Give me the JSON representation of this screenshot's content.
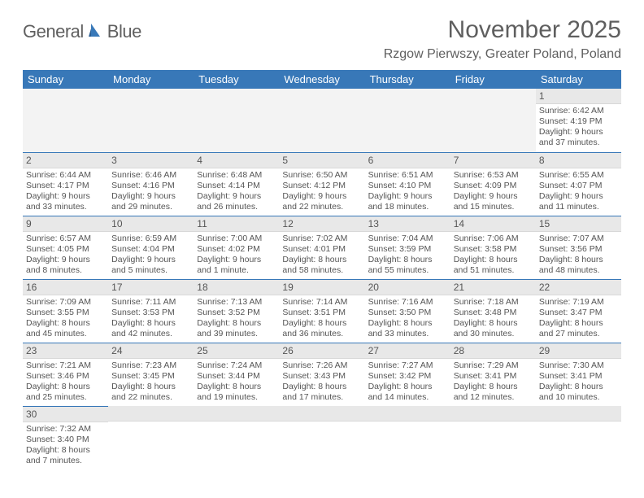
{
  "brand": {
    "name_part1": "General",
    "name_part2": "Blue"
  },
  "title": "November 2025",
  "location": "Rzgow Pierwszy, Greater Poland, Poland",
  "colors": {
    "header_bg": "#3878b8",
    "header_text": "#ffffff",
    "body_text": "#555555",
    "title_text": "#5f5f5f",
    "daynum_bg": "#e8e8e8",
    "row_divider": "#3878b8",
    "cell_border": "#e0e0e0",
    "empty_bg": "#f3f3f3",
    "background": "#ffffff"
  },
  "typography": {
    "title_fontsize": 30,
    "location_fontsize": 16,
    "dayhead_fontsize": 13,
    "daynum_fontsize": 12,
    "body_fontsize": 10.5,
    "logo_fontsize": 22
  },
  "day_headers": [
    "Sunday",
    "Monday",
    "Tuesday",
    "Wednesday",
    "Thursday",
    "Friday",
    "Saturday"
  ],
  "weeks": [
    [
      null,
      null,
      null,
      null,
      null,
      null,
      {
        "day": "1",
        "sunrise": "Sunrise: 6:42 AM",
        "sunset": "Sunset: 4:19 PM",
        "daylight1": "Daylight: 9 hours",
        "daylight2": "and 37 minutes."
      }
    ],
    [
      {
        "day": "2",
        "sunrise": "Sunrise: 6:44 AM",
        "sunset": "Sunset: 4:17 PM",
        "daylight1": "Daylight: 9 hours",
        "daylight2": "and 33 minutes."
      },
      {
        "day": "3",
        "sunrise": "Sunrise: 6:46 AM",
        "sunset": "Sunset: 4:16 PM",
        "daylight1": "Daylight: 9 hours",
        "daylight2": "and 29 minutes."
      },
      {
        "day": "4",
        "sunrise": "Sunrise: 6:48 AM",
        "sunset": "Sunset: 4:14 PM",
        "daylight1": "Daylight: 9 hours",
        "daylight2": "and 26 minutes."
      },
      {
        "day": "5",
        "sunrise": "Sunrise: 6:50 AM",
        "sunset": "Sunset: 4:12 PM",
        "daylight1": "Daylight: 9 hours",
        "daylight2": "and 22 minutes."
      },
      {
        "day": "6",
        "sunrise": "Sunrise: 6:51 AM",
        "sunset": "Sunset: 4:10 PM",
        "daylight1": "Daylight: 9 hours",
        "daylight2": "and 18 minutes."
      },
      {
        "day": "7",
        "sunrise": "Sunrise: 6:53 AM",
        "sunset": "Sunset: 4:09 PM",
        "daylight1": "Daylight: 9 hours",
        "daylight2": "and 15 minutes."
      },
      {
        "day": "8",
        "sunrise": "Sunrise: 6:55 AM",
        "sunset": "Sunset: 4:07 PM",
        "daylight1": "Daylight: 9 hours",
        "daylight2": "and 11 minutes."
      }
    ],
    [
      {
        "day": "9",
        "sunrise": "Sunrise: 6:57 AM",
        "sunset": "Sunset: 4:05 PM",
        "daylight1": "Daylight: 9 hours",
        "daylight2": "and 8 minutes."
      },
      {
        "day": "10",
        "sunrise": "Sunrise: 6:59 AM",
        "sunset": "Sunset: 4:04 PM",
        "daylight1": "Daylight: 9 hours",
        "daylight2": "and 5 minutes."
      },
      {
        "day": "11",
        "sunrise": "Sunrise: 7:00 AM",
        "sunset": "Sunset: 4:02 PM",
        "daylight1": "Daylight: 9 hours",
        "daylight2": "and 1 minute."
      },
      {
        "day": "12",
        "sunrise": "Sunrise: 7:02 AM",
        "sunset": "Sunset: 4:01 PM",
        "daylight1": "Daylight: 8 hours",
        "daylight2": "and 58 minutes."
      },
      {
        "day": "13",
        "sunrise": "Sunrise: 7:04 AM",
        "sunset": "Sunset: 3:59 PM",
        "daylight1": "Daylight: 8 hours",
        "daylight2": "and 55 minutes."
      },
      {
        "day": "14",
        "sunrise": "Sunrise: 7:06 AM",
        "sunset": "Sunset: 3:58 PM",
        "daylight1": "Daylight: 8 hours",
        "daylight2": "and 51 minutes."
      },
      {
        "day": "15",
        "sunrise": "Sunrise: 7:07 AM",
        "sunset": "Sunset: 3:56 PM",
        "daylight1": "Daylight: 8 hours",
        "daylight2": "and 48 minutes."
      }
    ],
    [
      {
        "day": "16",
        "sunrise": "Sunrise: 7:09 AM",
        "sunset": "Sunset: 3:55 PM",
        "daylight1": "Daylight: 8 hours",
        "daylight2": "and 45 minutes."
      },
      {
        "day": "17",
        "sunrise": "Sunrise: 7:11 AM",
        "sunset": "Sunset: 3:53 PM",
        "daylight1": "Daylight: 8 hours",
        "daylight2": "and 42 minutes."
      },
      {
        "day": "18",
        "sunrise": "Sunrise: 7:13 AM",
        "sunset": "Sunset: 3:52 PM",
        "daylight1": "Daylight: 8 hours",
        "daylight2": "and 39 minutes."
      },
      {
        "day": "19",
        "sunrise": "Sunrise: 7:14 AM",
        "sunset": "Sunset: 3:51 PM",
        "daylight1": "Daylight: 8 hours",
        "daylight2": "and 36 minutes."
      },
      {
        "day": "20",
        "sunrise": "Sunrise: 7:16 AM",
        "sunset": "Sunset: 3:50 PM",
        "daylight1": "Daylight: 8 hours",
        "daylight2": "and 33 minutes."
      },
      {
        "day": "21",
        "sunrise": "Sunrise: 7:18 AM",
        "sunset": "Sunset: 3:48 PM",
        "daylight1": "Daylight: 8 hours",
        "daylight2": "and 30 minutes."
      },
      {
        "day": "22",
        "sunrise": "Sunrise: 7:19 AM",
        "sunset": "Sunset: 3:47 PM",
        "daylight1": "Daylight: 8 hours",
        "daylight2": "and 27 minutes."
      }
    ],
    [
      {
        "day": "23",
        "sunrise": "Sunrise: 7:21 AM",
        "sunset": "Sunset: 3:46 PM",
        "daylight1": "Daylight: 8 hours",
        "daylight2": "and 25 minutes."
      },
      {
        "day": "24",
        "sunrise": "Sunrise: 7:23 AM",
        "sunset": "Sunset: 3:45 PM",
        "daylight1": "Daylight: 8 hours",
        "daylight2": "and 22 minutes."
      },
      {
        "day": "25",
        "sunrise": "Sunrise: 7:24 AM",
        "sunset": "Sunset: 3:44 PM",
        "daylight1": "Daylight: 8 hours",
        "daylight2": "and 19 minutes."
      },
      {
        "day": "26",
        "sunrise": "Sunrise: 7:26 AM",
        "sunset": "Sunset: 3:43 PM",
        "daylight1": "Daylight: 8 hours",
        "daylight2": "and 17 minutes."
      },
      {
        "day": "27",
        "sunrise": "Sunrise: 7:27 AM",
        "sunset": "Sunset: 3:42 PM",
        "daylight1": "Daylight: 8 hours",
        "daylight2": "and 14 minutes."
      },
      {
        "day": "28",
        "sunrise": "Sunrise: 7:29 AM",
        "sunset": "Sunset: 3:41 PM",
        "daylight1": "Daylight: 8 hours",
        "daylight2": "and 12 minutes."
      },
      {
        "day": "29",
        "sunrise": "Sunrise: 7:30 AM",
        "sunset": "Sunset: 3:41 PM",
        "daylight1": "Daylight: 8 hours",
        "daylight2": "and 10 minutes."
      }
    ],
    [
      {
        "day": "30",
        "sunrise": "Sunrise: 7:32 AM",
        "sunset": "Sunset: 3:40 PM",
        "daylight1": "Daylight: 8 hours",
        "daylight2": "and 7 minutes."
      },
      null,
      null,
      null,
      null,
      null,
      null
    ]
  ]
}
